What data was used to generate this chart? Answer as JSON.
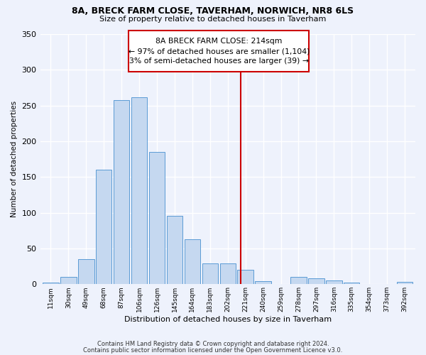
{
  "title1": "8A, BRECK FARM CLOSE, TAVERHAM, NORWICH, NR8 6LS",
  "title2": "Size of property relative to detached houses in Taverham",
  "xlabel": "Distribution of detached houses by size in Taverham",
  "ylabel": "Number of detached properties",
  "categories": [
    "11sqm",
    "30sqm",
    "49sqm",
    "68sqm",
    "87sqm",
    "106sqm",
    "126sqm",
    "145sqm",
    "164sqm",
    "183sqm",
    "202sqm",
    "221sqm",
    "240sqm",
    "259sqm",
    "278sqm",
    "297sqm",
    "316sqm",
    "335sqm",
    "354sqm",
    "373sqm",
    "392sqm"
  ],
  "values": [
    2,
    10,
    35,
    160,
    258,
    262,
    185,
    96,
    63,
    29,
    29,
    20,
    4,
    0,
    10,
    8,
    5,
    2,
    0,
    0,
    3
  ],
  "bar_color": "#c5d8f0",
  "bar_edge_color": "#5b9bd5",
  "vline_x": 10.75,
  "vline_color": "#cc0000",
  "annotation_text": "8A BRECK FARM CLOSE: 214sqm\n← 97% of detached houses are smaller (1,104)\n3% of semi-detached houses are larger (39) →",
  "annotation_box_color": "#cc0000",
  "bg_color": "#eef2fc",
  "grid_color": "#ffffff",
  "footer1": "Contains HM Land Registry data © Crown copyright and database right 2024.",
  "footer2": "Contains public sector information licensed under the Open Government Licence v3.0.",
  "ylim": [
    0,
    350
  ],
  "yticks": [
    0,
    50,
    100,
    150,
    200,
    250,
    300,
    350
  ]
}
